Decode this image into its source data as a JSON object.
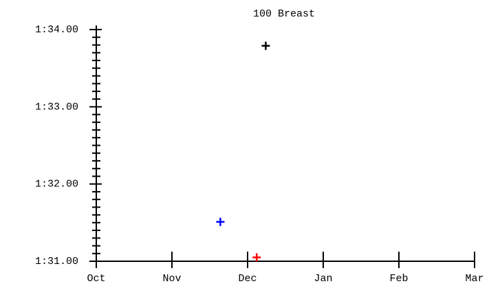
{
  "chart_data": {
    "type": "scatter",
    "title": "100 Breast",
    "x": [
      1.64,
      2.24,
      2.12
    ],
    "values": [
      91.51,
      93.79,
      91.05
    ],
    "colors": [
      "#0000ff",
      "#000000",
      "#ff0000"
    ],
    "xlim": [
      0,
      5
    ],
    "xticks": [
      {
        "value": 0,
        "label": "Oct"
      },
      {
        "value": 1,
        "label": "Nov"
      },
      {
        "value": 2,
        "label": "Dec"
      },
      {
        "value": 3,
        "label": "Jan"
      },
      {
        "value": 4,
        "label": "Feb"
      },
      {
        "value": 5,
        "label": "Mar"
      }
    ],
    "ylim": [
      91,
      94
    ],
    "yticks": [
      {
        "value": 91,
        "label": "1:31.00"
      },
      {
        "value": 92,
        "label": "1:32.00"
      },
      {
        "value": 93,
        "label": "1:33.00"
      },
      {
        "value": 94,
        "label": "1:34.00"
      }
    ]
  }
}
